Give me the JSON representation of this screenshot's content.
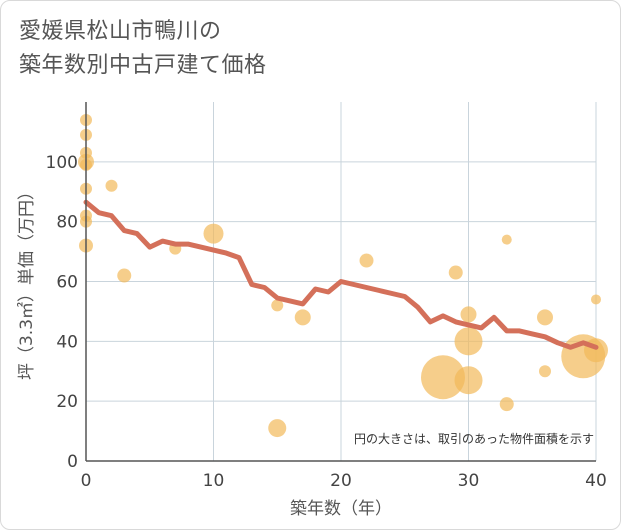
{
  "title_line1": "愛媛県松山市鴨川の",
  "title_line2": "築年数別中古戸建て価格",
  "chart_data": {
    "type": "scatter",
    "xlabel": "築年数（年）",
    "ylabel": "坪（3.3㎡）単価（万円）",
    "xlim": [
      0,
      40
    ],
    "ylim": [
      0,
      120
    ],
    "xticks": [
      0,
      10,
      20,
      30,
      40
    ],
    "yticks": [
      0,
      20,
      40,
      60,
      80,
      100
    ],
    "grid": true,
    "note": "円の大きさは、取引のあった物件面積を示す",
    "colors": {
      "bubble": "#f2b95a",
      "line": "#d4705a",
      "grid": "#c9d4dc"
    },
    "points": [
      {
        "x": 0,
        "y": 114,
        "s": 6
      },
      {
        "x": 0,
        "y": 109,
        "s": 6
      },
      {
        "x": 0,
        "y": 103,
        "s": 6
      },
      {
        "x": 0,
        "y": 100,
        "s": 8
      },
      {
        "x": 0,
        "y": 99,
        "s": 6
      },
      {
        "x": 0,
        "y": 91,
        "s": 6
      },
      {
        "x": 0,
        "y": 82,
        "s": 6
      },
      {
        "x": 0,
        "y": 80,
        "s": 6
      },
      {
        "x": 0,
        "y": 72,
        "s": 7
      },
      {
        "x": 2,
        "y": 92,
        "s": 6
      },
      {
        "x": 3,
        "y": 62,
        "s": 7
      },
      {
        "x": 7,
        "y": 71,
        "s": 6
      },
      {
        "x": 10,
        "y": 76,
        "s": 10
      },
      {
        "x": 15,
        "y": 52,
        "s": 6
      },
      {
        "x": 15,
        "y": 11,
        "s": 9
      },
      {
        "x": 17,
        "y": 48,
        "s": 8
      },
      {
        "x": 22,
        "y": 67,
        "s": 7
      },
      {
        "x": 28,
        "y": 28,
        "s": 22
      },
      {
        "x": 29,
        "y": 63,
        "s": 7
      },
      {
        "x": 30,
        "y": 49,
        "s": 8
      },
      {
        "x": 30,
        "y": 40,
        "s": 14
      },
      {
        "x": 30,
        "y": 27,
        "s": 14
      },
      {
        "x": 33,
        "y": 74,
        "s": 5
      },
      {
        "x": 33,
        "y": 19,
        "s": 7
      },
      {
        "x": 36,
        "y": 48,
        "s": 8
      },
      {
        "x": 36,
        "y": 30,
        "s": 6
      },
      {
        "x": 39,
        "y": 35,
        "s": 22
      },
      {
        "x": 40,
        "y": 37,
        "s": 12
      },
      {
        "x": 40,
        "y": 54,
        "s": 5
      }
    ],
    "series": [
      {
        "type": "line",
        "x": [
          0,
          1,
          2,
          3,
          4,
          5,
          6,
          7,
          8,
          9,
          10,
          11,
          12,
          13,
          14,
          15,
          16,
          17,
          18,
          19,
          20,
          21,
          22,
          23,
          24,
          25,
          26,
          27,
          28,
          29,
          30,
          31,
          32,
          33,
          34,
          35,
          36,
          37,
          38,
          39,
          40
        ],
        "y": [
          86.5,
          83,
          82,
          77,
          76,
          71.5,
          73.5,
          72.5,
          72.5,
          71.5,
          70.5,
          69.5,
          68,
          59,
          58,
          54.5,
          53.5,
          52.5,
          57.5,
          56.5,
          60,
          59,
          58,
          57,
          56,
          55,
          51.5,
          46.5,
          48.5,
          46.5,
          45.5,
          44.5,
          48,
          43.5,
          43.5,
          42.5,
          41.5,
          39.5,
          38,
          39.5,
          38
        ]
      }
    ]
  }
}
